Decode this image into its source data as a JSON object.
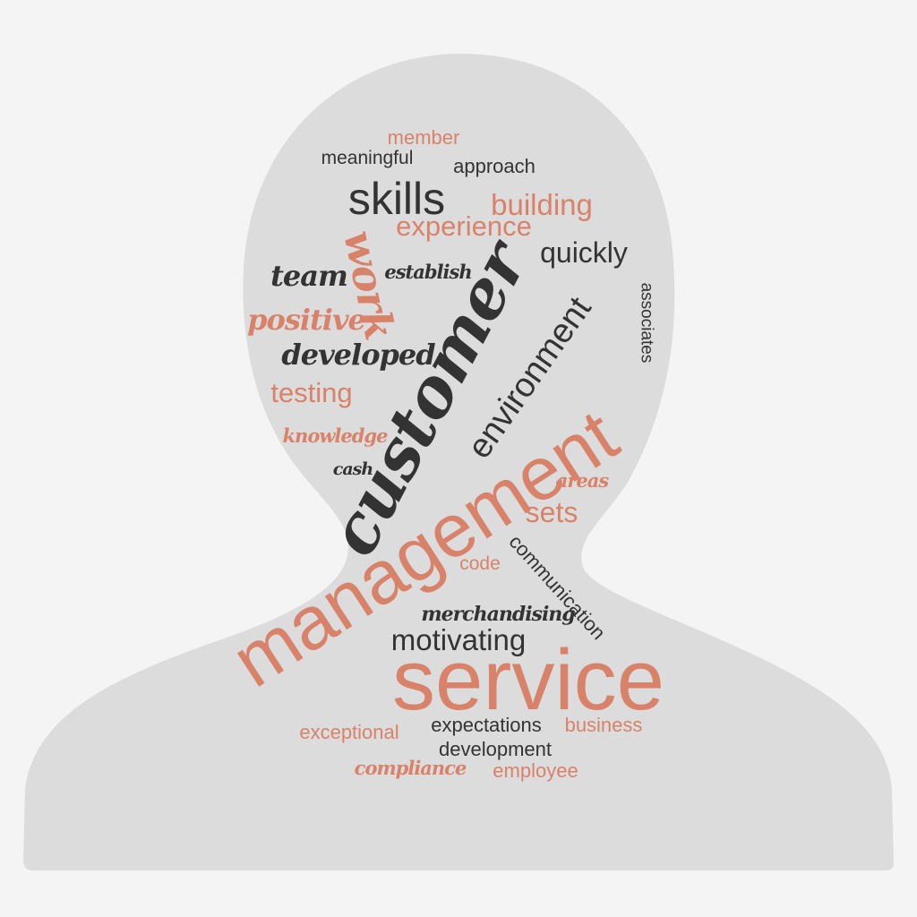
{
  "colors": {
    "background": "#f4f4f4",
    "silhouette": "#dcdcdc",
    "accent": "#d9826a",
    "dark": "#333333"
  },
  "words": [
    {
      "text": "member",
      "color": "accent",
      "font": "sans"
    },
    {
      "text": "meaningful",
      "color": "dark",
      "font": "sans"
    },
    {
      "text": "approach",
      "color": "dark",
      "font": "sans"
    },
    {
      "text": "skills",
      "color": "dark",
      "font": "sans"
    },
    {
      "text": "building",
      "color": "accent",
      "font": "sans"
    },
    {
      "text": "experience",
      "color": "accent",
      "font": "sans"
    },
    {
      "text": "quickly",
      "color": "dark",
      "font": "sans"
    },
    {
      "text": "work",
      "color": "accent",
      "font": "script"
    },
    {
      "text": "team",
      "color": "dark",
      "font": "script"
    },
    {
      "text": "establish",
      "color": "dark",
      "font": "script"
    },
    {
      "text": "associates",
      "color": "dark",
      "font": "sans"
    },
    {
      "text": "positive",
      "color": "accent",
      "font": "script"
    },
    {
      "text": "developed",
      "color": "dark",
      "font": "script"
    },
    {
      "text": "customer",
      "color": "dark",
      "font": "script"
    },
    {
      "text": "environment",
      "color": "dark",
      "font": "sans"
    },
    {
      "text": "testing",
      "color": "accent",
      "font": "sans"
    },
    {
      "text": "knowledge",
      "color": "accent",
      "font": "script"
    },
    {
      "text": "cash",
      "color": "dark",
      "font": "script"
    },
    {
      "text": "areas",
      "color": "accent",
      "font": "script"
    },
    {
      "text": "sets",
      "color": "accent",
      "font": "sans"
    },
    {
      "text": "management",
      "color": "accent",
      "font": "sans"
    },
    {
      "text": "code",
      "color": "accent",
      "font": "sans"
    },
    {
      "text": "communication",
      "color": "dark",
      "font": "sans"
    },
    {
      "text": "merchandising",
      "color": "dark",
      "font": "script"
    },
    {
      "text": "motivating",
      "color": "dark",
      "font": "sans"
    },
    {
      "text": "service",
      "color": "accent",
      "font": "sans"
    },
    {
      "text": "exceptional",
      "color": "accent",
      "font": "sans"
    },
    {
      "text": "expectations",
      "color": "dark",
      "font": "sans"
    },
    {
      "text": "business",
      "color": "accent",
      "font": "sans"
    },
    {
      "text": "development",
      "color": "dark",
      "font": "sans"
    },
    {
      "text": "compliance",
      "color": "accent",
      "font": "script"
    },
    {
      "text": "employee",
      "color": "accent",
      "font": "sans"
    }
  ]
}
